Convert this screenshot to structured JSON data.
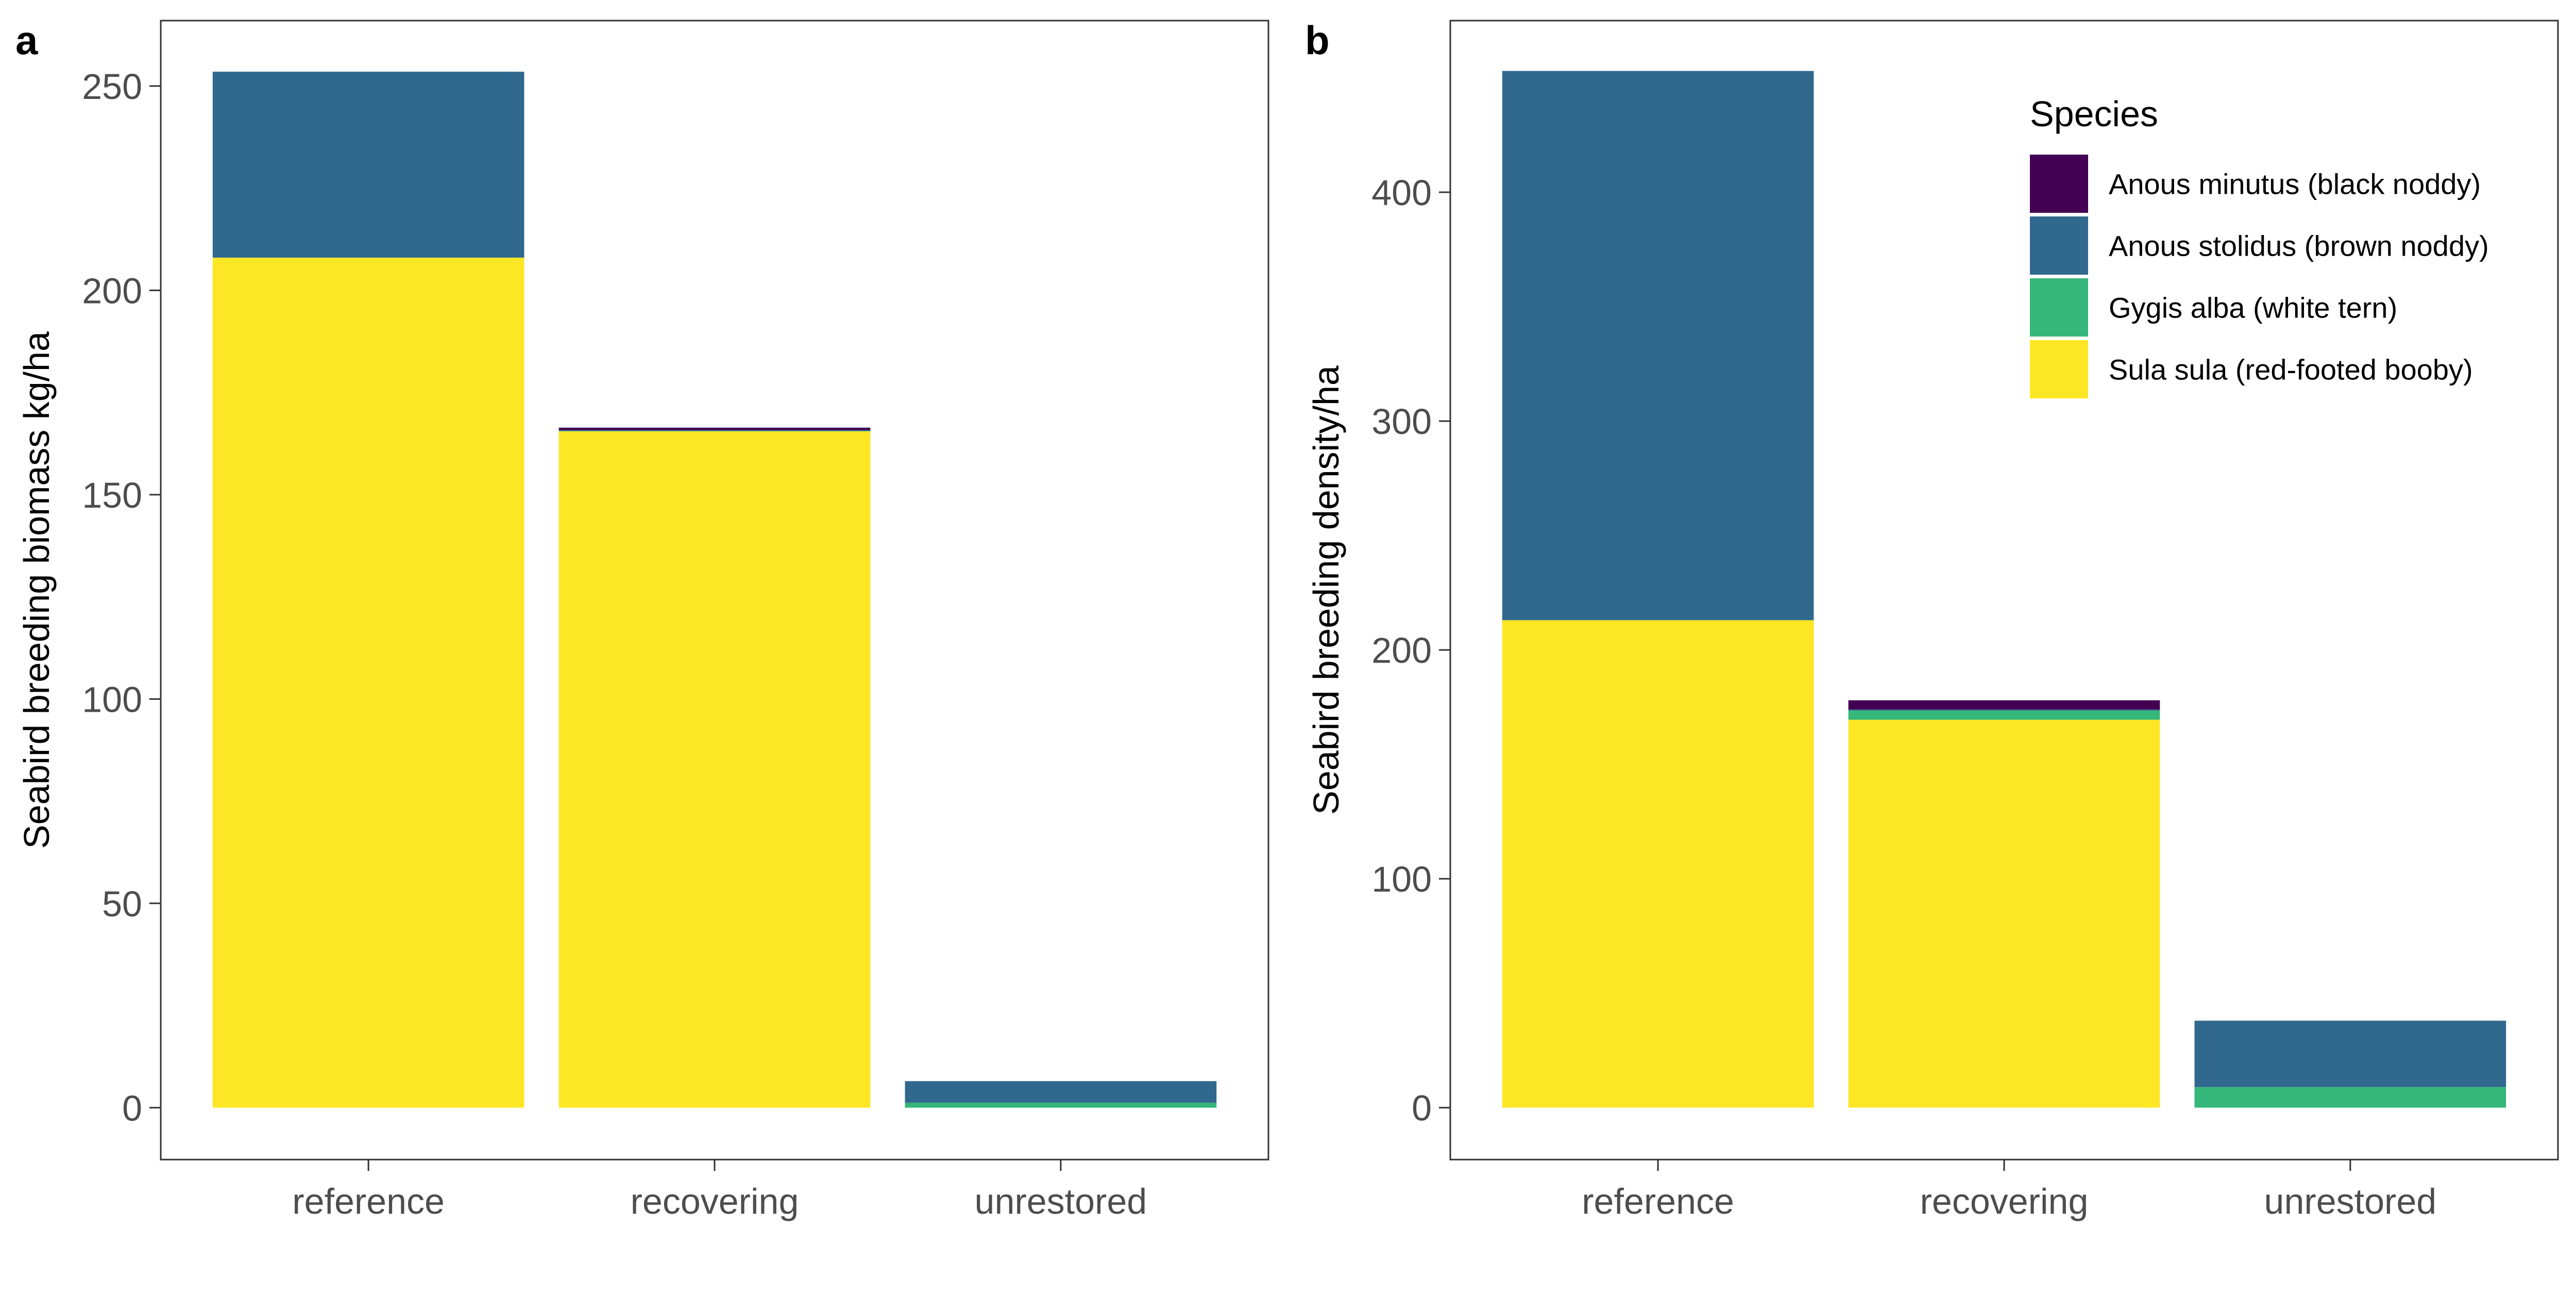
{
  "chart_data": [
    {
      "type": "bar",
      "stacked": true,
      "panel_label": "a",
      "title": "",
      "xlabel": "",
      "ylabel": "Seabird breeding biomass kg/ha",
      "categories": [
        "reference",
        "recovering",
        "unrestored"
      ],
      "ylim": [
        -12.7,
        266
      ],
      "yticks": [
        0,
        50,
        100,
        150,
        200,
        250
      ],
      "grid": false,
      "series": [
        {
          "name": "Sula sula (red-footed booby)",
          "color": "#FDE725",
          "values": [
            208,
            165.5,
            0
          ]
        },
        {
          "name": "Gygis alba (white tern)",
          "color": "#35B779",
          "values": [
            0,
            0.1,
            1.2
          ]
        },
        {
          "name": "Anous stolidus (brown noddy)",
          "color": "#31688E",
          "values": [
            45.5,
            0.2,
            5.3
          ]
        },
        {
          "name": "Anous minutus (black noddy)",
          "color": "#440154",
          "values": [
            0,
            0.6,
            0
          ]
        }
      ]
    },
    {
      "type": "bar",
      "stacked": true,
      "panel_label": "b",
      "title": "",
      "xlabel": "",
      "ylabel": "Seabird breeding density/ha",
      "categories": [
        "reference",
        "recovering",
        "unrestored"
      ],
      "ylim": [
        -22.7,
        475
      ],
      "yticks": [
        0,
        100,
        200,
        300,
        400
      ],
      "grid": false,
      "legend_position": "top-right",
      "legend_title": "Species",
      "series": [
        {
          "name": "Sula sula (red-footed booby)",
          "color": "#FDE725",
          "values": [
            213,
            169.5,
            0
          ]
        },
        {
          "name": "Gygis alba (white tern)",
          "color": "#35B779",
          "values": [
            0,
            4,
            9
          ]
        },
        {
          "name": "Anous stolidus (brown noddy)",
          "color": "#31688E",
          "values": [
            240,
            0.5,
            29
          ]
        },
        {
          "name": "Anous minutus (black noddy)",
          "color": "#440154",
          "values": [
            0,
            4,
            0
          ]
        }
      ]
    }
  ],
  "legend": {
    "title": "Species",
    "items": [
      {
        "label": "Anous minutus (black noddy)",
        "color": "#440154"
      },
      {
        "label": "Anous stolidus (brown noddy)",
        "color": "#31688E"
      },
      {
        "label": "Gygis alba (white tern)",
        "color": "#35B779"
      },
      {
        "label": "Sula sula (red-footed booby)",
        "color": "#FDE725"
      }
    ]
  }
}
